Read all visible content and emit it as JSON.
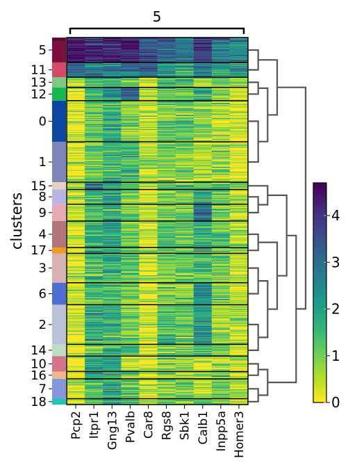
{
  "chart_data": {
    "type": "heatmap",
    "group_bracket_label": "5",
    "ylabel": "clusters",
    "genes": [
      "Pcp2",
      "Itpr1",
      "Gng13",
      "Pvalb",
      "Car8",
      "Rgs8",
      "Sbk1",
      "Calb1",
      "Inpp5a",
      "Homer3"
    ],
    "colorbar": {
      "min": 0,
      "max": 4.7,
      "ticks": [
        0,
        1,
        2,
        3,
        4
      ],
      "colormap": "viridis_r"
    },
    "clusters": [
      {
        "name": "5",
        "color": "#7b0f3f",
        "labeled": true,
        "rows": 34,
        "means": [
          4.3,
          4.1,
          4.2,
          4.5,
          3.6,
          3.2,
          2.8,
          3.8,
          2.8,
          2.6
        ]
      },
      {
        "name": "11",
        "color": "#d5486a",
        "labeled": true,
        "rows": 20,
        "means": [
          3.0,
          2.9,
          2.6,
          3.0,
          3.2,
          2.2,
          1.8,
          2.6,
          2.0,
          2.2
        ]
      },
      {
        "name": "13",
        "color": "#7fc97f",
        "labeled": true,
        "rows": 14,
        "means": [
          0.3,
          1.6,
          1.8,
          1.2,
          0.3,
          1.5,
          1.5,
          1.0,
          1.0,
          0.6
        ]
      },
      {
        "name": "12",
        "color": "#17b94f",
        "labeled": true,
        "rows": 18,
        "means": [
          0.4,
          1.5,
          2.2,
          3.4,
          0.5,
          1.2,
          1.3,
          1.6,
          0.9,
          0.4
        ]
      },
      {
        "name": "0",
        "color": "#0b46a0",
        "labeled": true,
        "rows": 56,
        "means": [
          0.3,
          1.1,
          1.7,
          1.0,
          0.4,
          1.1,
          1.2,
          0.9,
          0.6,
          0.3
        ]
      },
      {
        "name": "1",
        "color": "#7e86b8",
        "labeled": true,
        "rows": 55,
        "means": [
          0.3,
          1.1,
          1.6,
          1.5,
          0.5,
          0.9,
          0.9,
          0.6,
          0.6,
          0.2
        ]
      },
      {
        "name": "15",
        "color": "#e7cfc4",
        "labeled": true,
        "rows": 10,
        "means": [
          0.6,
          2.4,
          2.0,
          1.8,
          0.5,
          1.2,
          1.3,
          1.2,
          1.2,
          1.0
        ]
      },
      {
        "name": "8",
        "color": "#b7b6e2",
        "labeled": true,
        "rows": 20,
        "means": [
          0.3,
          1.6,
          1.9,
          1.0,
          0.2,
          1.0,
          1.1,
          1.8,
          1.0,
          0.5
        ]
      },
      {
        "name": "9",
        "color": "#e7aab4",
        "labeled": true,
        "rows": 23,
        "means": [
          0.3,
          1.4,
          2.0,
          1.0,
          0.2,
          1.1,
          1.0,
          2.6,
          0.9,
          0.4
        ]
      },
      {
        "name": "4",
        "color": "#b3757d",
        "labeled": true,
        "rows": 36,
        "means": [
          0.2,
          1.7,
          2.0,
          1.2,
          0.2,
          1.2,
          1.1,
          1.6,
          1.2,
          0.6
        ]
      },
      {
        "name": "17",
        "color": "#f39a1b",
        "labeled": true,
        "rows": 8,
        "means": [
          0.3,
          1.9,
          2.0,
          1.5,
          0.3,
          1.4,
          1.3,
          1.8,
          1.3,
          0.8
        ]
      },
      {
        "name": "3",
        "color": "#d6b2b5",
        "labeled": true,
        "rows": 40,
        "means": [
          0.2,
          1.5,
          1.6,
          1.2,
          0.2,
          1.0,
          1.1,
          1.4,
          1.0,
          0.5
        ]
      },
      {
        "name": "6",
        "color": "#4e6ed4",
        "labeled": true,
        "rows": 30,
        "means": [
          0.2,
          1.4,
          1.6,
          1.1,
          0.2,
          1.0,
          0.9,
          2.3,
          0.9,
          0.4
        ]
      },
      {
        "name": "2",
        "color": "#bcc0d8",
        "labeled": true,
        "rows": 54,
        "means": [
          0.2,
          1.8,
          1.6,
          1.0,
          0.2,
          1.4,
          1.2,
          2.2,
          0.8,
          0.5
        ]
      },
      {
        "name": "14",
        "color": "#bcdcc3",
        "labeled": true,
        "rows": 16,
        "means": [
          0.2,
          1.2,
          1.6,
          1.6,
          0.2,
          1.2,
          1.0,
          1.8,
          1.0,
          0.5
        ]
      },
      {
        "name": "10",
        "color": "#d5748c",
        "labeled": true,
        "rows": 21,
        "means": [
          0.2,
          2.0,
          2.3,
          0.4,
          0.1,
          0.9,
          0.6,
          0.5,
          0.7,
          0.3
        ]
      },
      {
        "name": "16",
        "color": "#f0b78d",
        "labeled": true,
        "rows": 10,
        "means": [
          0.3,
          1.8,
          2.0,
          0.8,
          0.2,
          0.8,
          0.6,
          0.8,
          0.8,
          0.3
        ]
      },
      {
        "name": "7",
        "color": "#8398dd",
        "labeled": true,
        "rows": 27,
        "means": [
          0.4,
          1.5,
          2.0,
          1.3,
          0.3,
          1.0,
          1.0,
          0.9,
          1.1,
          0.6
        ]
      },
      {
        "name": "18",
        "color": "#22c3b0",
        "labeled": true,
        "rows": 8,
        "means": [
          0.4,
          1.6,
          1.8,
          1.6,
          0.4,
          1.2,
          1.2,
          1.0,
          1.2,
          0.6
        ]
      }
    ]
  }
}
